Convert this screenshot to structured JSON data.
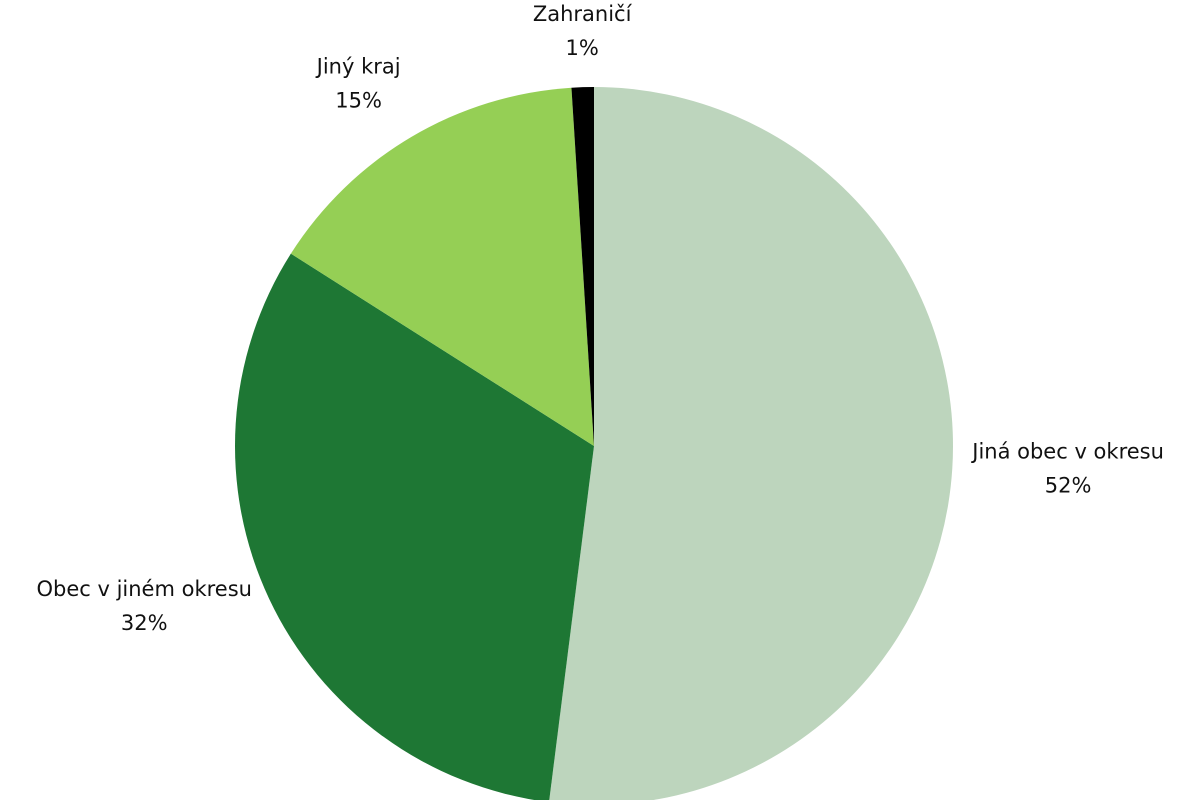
{
  "chart_data": {
    "type": "pie",
    "categories": [
      "Jiná obec v okresu",
      "Obec v jiném okresu",
      "Jiný kraj",
      "Zahraničí"
    ],
    "values": [
      52,
      32,
      15,
      1
    ],
    "value_labels": [
      "52%",
      "32%",
      "15%",
      "1%"
    ],
    "colors": [
      "#bdd5bd",
      "#1e7734",
      "#95cf55",
      "#000000"
    ]
  }
}
